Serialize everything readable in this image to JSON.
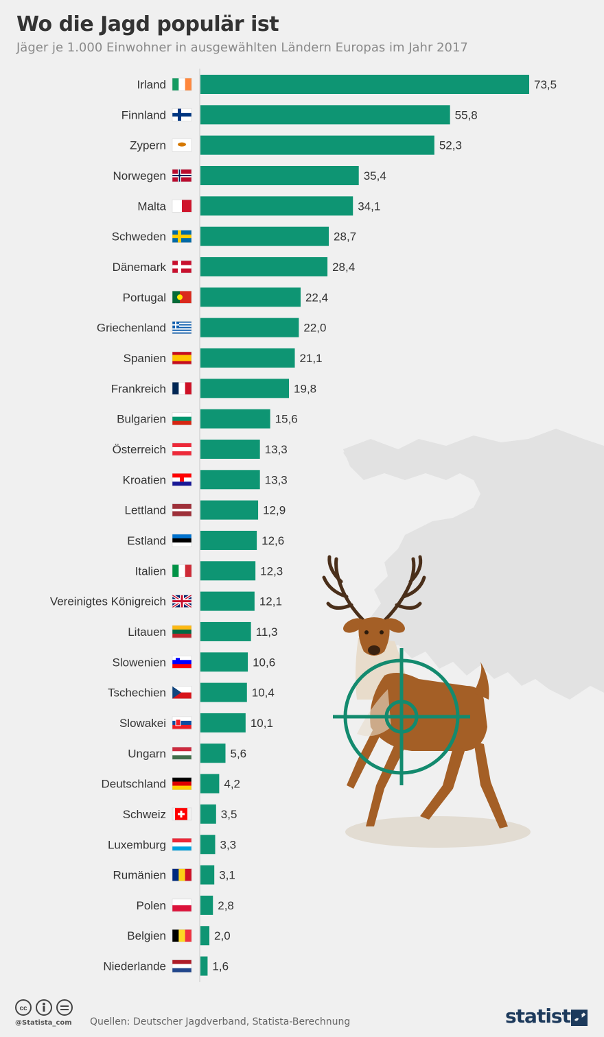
{
  "header": {
    "title": "Wo die Jagd populär ist",
    "subtitle": "Jäger je 1.000 Einwohner in ausgewählten Ländern Europas im Jahr 2017"
  },
  "footer": {
    "source": "Quellen: Deutscher Jagdverband, Statista-Berechnung",
    "handle": "@Statista_com",
    "logo": "statista"
  },
  "colors": {
    "bar": "#0e9573",
    "background": "#f0f0f0",
    "reticle": "#138a6e",
    "map": "#e2e2e2"
  },
  "icons": [
    "cc-icon",
    "by-icon",
    "nd-icon",
    "statista-logo-mark-icon",
    "europe-map-illustration",
    "deer-illustration",
    "crosshair-icon"
  ],
  "chart_data": {
    "type": "bar",
    "orientation": "horizontal",
    "categories": [
      "Irland",
      "Finnland",
      "Zypern",
      "Norwegen",
      "Malta",
      "Schweden",
      "Dänemark",
      "Portugal",
      "Griechenland",
      "Spanien",
      "Frankreich",
      "Bulgarien",
      "Österreich",
      "Kroatien",
      "Lettland",
      "Estland",
      "Italien",
      "Vereinigtes Königreich",
      "Litauen",
      "Slowenien",
      "Tschechien",
      "Slowakei",
      "Ungarn",
      "Deutschland",
      "Schweiz",
      "Luxemburg",
      "Rumänien",
      "Polen",
      "Belgien",
      "Niederlande"
    ],
    "values": [
      73.5,
      55.8,
      52.3,
      35.4,
      34.1,
      28.7,
      28.4,
      22.4,
      22.0,
      21.1,
      19.8,
      15.6,
      13.3,
      13.3,
      12.9,
      12.6,
      12.3,
      12.1,
      11.3,
      10.6,
      10.4,
      10.1,
      5.6,
      4.2,
      3.5,
      3.3,
      3.1,
      2.8,
      2.0,
      1.6
    ],
    "value_labels": [
      "73,5",
      "55,8",
      "52,3",
      "35,4",
      "34,1",
      "28,7",
      "28,4",
      "22,4",
      "22,0",
      "21,1",
      "19,8",
      "15,6",
      "13,3",
      "13,3",
      "12,9",
      "12,6",
      "12,3",
      "12,1",
      "11,3",
      "10,6",
      "10,4",
      "10,1",
      "5,6",
      "4,2",
      "3,5",
      "3,3",
      "3,1",
      "2,8",
      "2,0",
      "1,6"
    ],
    "flags": [
      "ie",
      "fi",
      "cy",
      "no",
      "mt",
      "se",
      "dk",
      "pt",
      "gr",
      "es",
      "fr",
      "bg",
      "at",
      "hr",
      "lv",
      "ee",
      "it",
      "gb",
      "lt",
      "si",
      "cz",
      "sk",
      "hu",
      "de",
      "ch",
      "lu",
      "ro",
      "pl",
      "be",
      "nl"
    ],
    "title": "Wo die Jagd populär ist",
    "xlabel": "",
    "ylabel": "",
    "xlim": [
      0,
      73.5
    ],
    "grid": false,
    "legend": "none"
  }
}
